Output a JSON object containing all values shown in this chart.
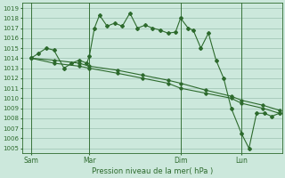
{
  "title": "Pression niveau de la mer( hPa )",
  "ylabel_values": [
    1005,
    1006,
    1007,
    1008,
    1009,
    1010,
    1011,
    1012,
    1013,
    1014,
    1015,
    1016,
    1017,
    1018,
    1019
  ],
  "ylim": [
    1004.5,
    1019.5
  ],
  "xlim": [
    -5,
    200
  ],
  "background_color": "#cce8dc",
  "grid_color": "#9ac0b0",
  "line_color": "#2d6a2d",
  "marker_color": "#2d6a2d",
  "day_labels": [
    "Sam",
    "Mar",
    "Dim",
    "Lun"
  ],
  "day_positions": [
    2,
    48,
    120,
    168
  ],
  "vline_positions": [
    2,
    48,
    120,
    168
  ],
  "series": [
    {
      "x": [
        2,
        8,
        14,
        20,
        28,
        34,
        40,
        46,
        48,
        52,
        56,
        62,
        68,
        74,
        80,
        86,
        92,
        98,
        104,
        110,
        116,
        120,
        126,
        130,
        136,
        142,
        148,
        154,
        160,
        168,
        174,
        180,
        186,
        192,
        198
      ],
      "y": [
        1014.0,
        1014.5,
        1015.0,
        1014.8,
        1013.0,
        1013.5,
        1013.8,
        1013.5,
        1014.2,
        1017.0,
        1018.3,
        1017.2,
        1017.5,
        1017.2,
        1018.5,
        1017.0,
        1017.3,
        1017.0,
        1016.8,
        1016.5,
        1016.6,
        1018.0,
        1017.0,
        1016.8,
        1015.0,
        1016.5,
        1013.8,
        1012.0,
        1009.0,
        1006.5,
        1005.0,
        1008.5,
        1008.5,
        1008.2,
        1008.5
      ]
    },
    {
      "x": [
        2,
        20,
        40,
        48,
        70,
        90,
        110,
        120,
        140,
        160,
        168,
        185,
        198
      ],
      "y": [
        1014.0,
        1013.5,
        1013.2,
        1013.0,
        1012.5,
        1012.0,
        1011.5,
        1011.0,
        1010.5,
        1010.0,
        1009.5,
        1009.0,
        1008.5
      ]
    },
    {
      "x": [
        2,
        20,
        40,
        48,
        70,
        90,
        110,
        120,
        140,
        160,
        168,
        185,
        198
      ],
      "y": [
        1014.0,
        1013.8,
        1013.5,
        1013.2,
        1012.8,
        1012.3,
        1011.8,
        1011.5,
        1010.8,
        1010.2,
        1009.8,
        1009.3,
        1008.8
      ]
    }
  ]
}
